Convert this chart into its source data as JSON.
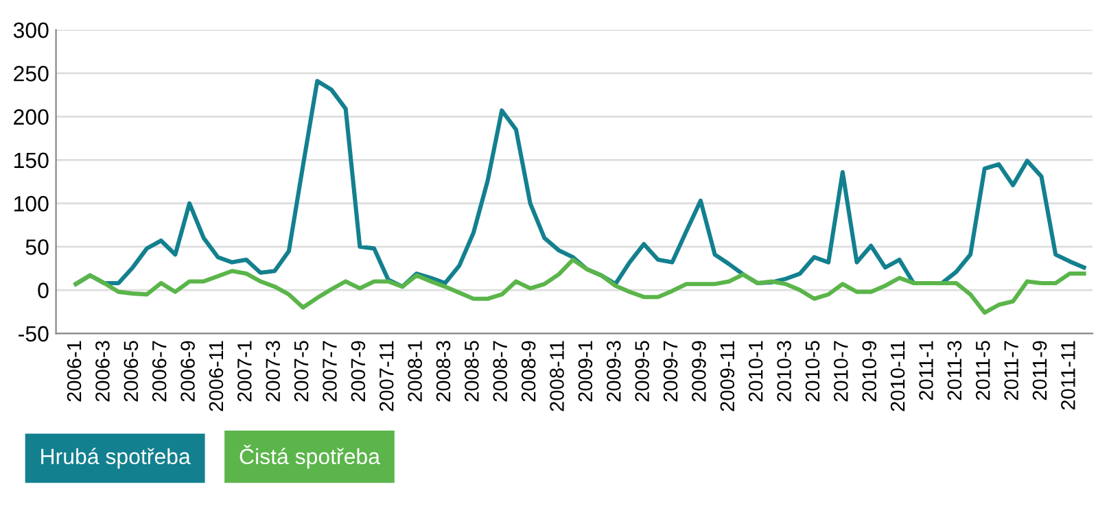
{
  "chart_data": {
    "type": "line",
    "categories": [
      "2006-1",
      null,
      "2006-3",
      null,
      "2006-5",
      null,
      "2006-7",
      null,
      "2006-9",
      null,
      "2006-11",
      null,
      "2007-1",
      null,
      "2007-3",
      null,
      "2007-5",
      null,
      "2007-7",
      null,
      "2007-9",
      null,
      "2007-11",
      null,
      "2008-1",
      null,
      "2008-3",
      null,
      "2008-5",
      null,
      "2008-7",
      null,
      "2008-9",
      null,
      "2008-11",
      null,
      "2009-1",
      null,
      "2009-3",
      null,
      "2009-5",
      null,
      "2009-7",
      null,
      "2009-9",
      null,
      "2009-11",
      null,
      "2010-1",
      null,
      "2010-3",
      null,
      "2010-5",
      null,
      "2010-7",
      null,
      "2010-9",
      null,
      "2010-11",
      null,
      "2011-1",
      null,
      "2011-3",
      null,
      "2011-5",
      null,
      "2011-7",
      null,
      "2011-9",
      null,
      "2011-11",
      null
    ],
    "series": [
      {
        "name": "Hrubá spotřeba",
        "color": "#13808f",
        "values": [
          7,
          17,
          8,
          8,
          26,
          48,
          57,
          41,
          100,
          60,
          38,
          32,
          35,
          20,
          22,
          45,
          144,
          241,
          231,
          209,
          50,
          48,
          12,
          4,
          19,
          14,
          8,
          28,
          66,
          126,
          207,
          185,
          100,
          60,
          46,
          38,
          24,
          17,
          7,
          32,
          53,
          35,
          32,
          68,
          103,
          41,
          30,
          18,
          8,
          9,
          13,
          19,
          38,
          32,
          136,
          32,
          51,
          26,
          35,
          8,
          8,
          8,
          21,
          41,
          140,
          145,
          121,
          149,
          131,
          41,
          33,
          26
        ]
      },
      {
        "name": "Čistá spotřeba",
        "color": "#5bb54a",
        "values": [
          7,
          17,
          8,
          -2,
          -4,
          -5,
          8,
          -2,
          10,
          10,
          16,
          22,
          19,
          10,
          4,
          -5,
          -20,
          -9,
          1,
          10,
          2,
          10,
          10,
          4,
          17,
          10,
          4,
          -3,
          -10,
          -10,
          -5,
          10,
          2,
          7,
          18,
          35,
          24,
          17,
          5,
          -2,
          -8,
          -8,
          -1,
          7,
          7,
          7,
          10,
          18,
          8,
          10,
          7,
          0,
          -10,
          -5,
          7,
          -2,
          -2,
          5,
          14,
          8,
          8,
          8,
          8,
          -5,
          -26,
          -17,
          -13,
          10,
          8,
          8,
          19,
          19
        ]
      }
    ],
    "ylim": [
      -50,
      300
    ],
    "yticks": [
      -50,
      0,
      50,
      100,
      150,
      200,
      250,
      300
    ],
    "grid": "y",
    "legend": "bottom left",
    "marker": "none",
    "line_style": "solid"
  }
}
